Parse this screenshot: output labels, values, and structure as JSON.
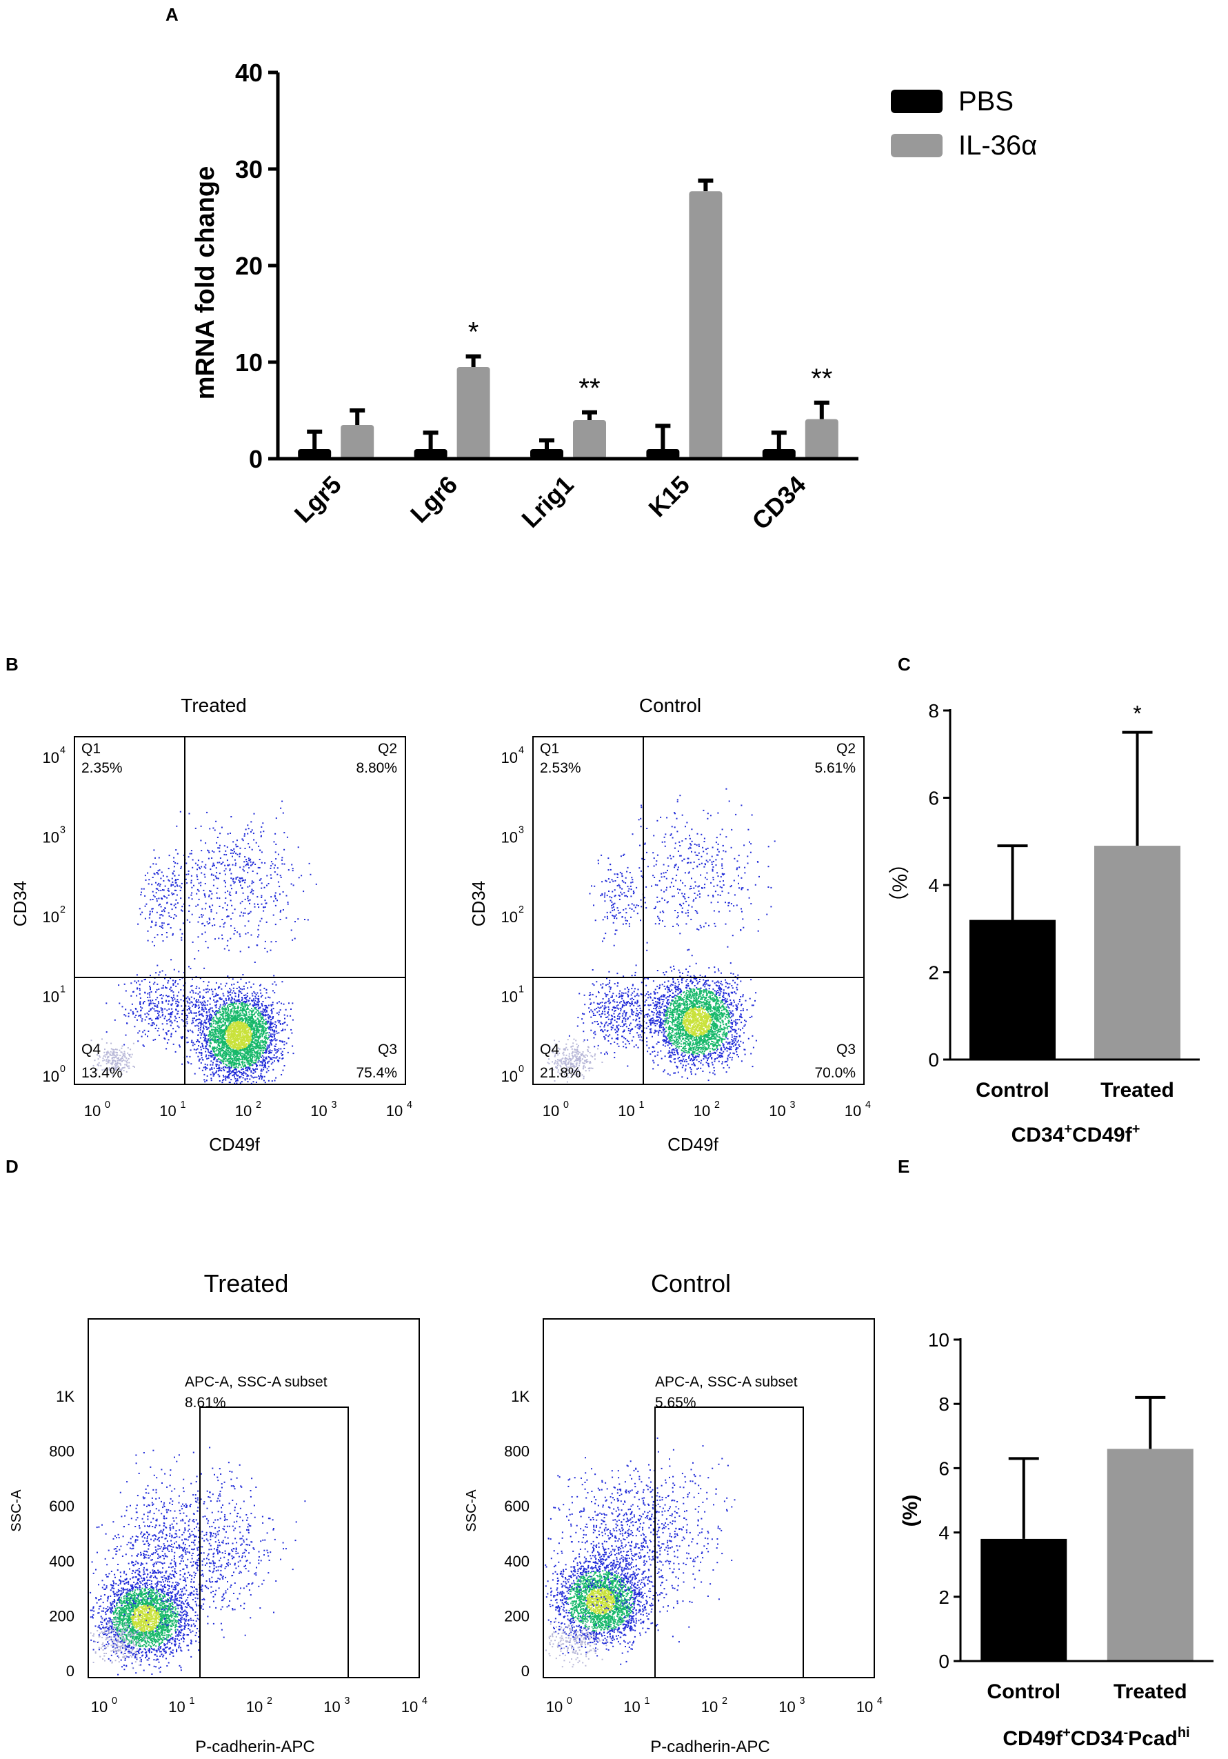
{
  "panel_labels": {
    "a": "A",
    "b": "B",
    "c": "C",
    "d": "D",
    "e": "E"
  },
  "colors": {
    "pbs": "#000000",
    "il36": "#999999",
    "control_bar": "#000000",
    "treated_bar": "#999999",
    "dot_low": "#1f2ad8",
    "dot_mid": "#17b86a",
    "dot_high": "#c9e23a",
    "dot_sparse": "#b8b8d8"
  },
  "chart_data": [
    {
      "id": "A",
      "type": "bar",
      "title": "",
      "ylabel": "mRNA fold change",
      "xlabel": "",
      "ylim": [
        0,
        40
      ],
      "yticks": [
        "0",
        "10",
        "20",
        "30",
        "40"
      ],
      "categories": [
        "Lgr5",
        "Lgr6",
        "Lrig1",
        "K15",
        "CD34"
      ],
      "series": [
        {
          "name": "PBS",
          "values": [
            1.0,
            1.0,
            1.0,
            1.0,
            1.0
          ],
          "errors": [
            1.8,
            1.7,
            0.9,
            2.4,
            1.7
          ]
        },
        {
          "name": "IL-36α",
          "values": [
            3.5,
            9.5,
            4.0,
            27.7,
            4.1
          ],
          "errors": [
            1.5,
            1.1,
            0.8,
            1.1,
            1.7
          ]
        }
      ],
      "annotations": [
        "",
        "*",
        "**",
        "",
        "**"
      ],
      "legend": [
        "PBS",
        "IL-36α"
      ]
    },
    {
      "id": "B",
      "type": "scatter",
      "plots": [
        {
          "title": "Treated",
          "xlabel": "CD49f",
          "ylabel": "CD34",
          "quadrants": {
            "q1": {
              "label": "Q1",
              "value": "2.35%"
            },
            "q2": {
              "label": "Q2",
              "value": "8.80%"
            },
            "q3": {
              "label": "Q3",
              "value": "75.4%"
            },
            "q4": {
              "label": "Q4",
              "value": "13.4%"
            }
          }
        },
        {
          "title": "Control",
          "xlabel": "CD49f",
          "ylabel": "CD34",
          "quadrants": {
            "q1": {
              "label": "Q1",
              "value": "2.53%"
            },
            "q2": {
              "label": "Q2",
              "value": "5.61%"
            },
            "q3": {
              "label": "Q3",
              "value": "70.0%"
            },
            "q4": {
              "label": "Q4",
              "value": "21.8%"
            }
          }
        }
      ],
      "log_ticks": [
        "0",
        "1",
        "2",
        "3",
        "4"
      ]
    },
    {
      "id": "C",
      "type": "bar",
      "ylabel": "（%）",
      "xlabel": "CD34⁺CD49f⁺",
      "ylim": [
        0,
        8
      ],
      "yticks": [
        "0",
        "2",
        "4",
        "6",
        "8"
      ],
      "categories": [
        "Control",
        "Treated"
      ],
      "values": [
        3.2,
        4.9
      ],
      "errors": [
        1.7,
        2.6
      ],
      "annotations": [
        "",
        "*"
      ]
    },
    {
      "id": "D",
      "type": "scatter",
      "plots": [
        {
          "title": "Treated",
          "gate_label": "APC-A, SSC-A subset",
          "gate_value": "8.61%",
          "xlabel": "P-cadherin-APC",
          "ylabel": "SSC-A"
        },
        {
          "title": "Control",
          "gate_label": "APC-A, SSC-A subset",
          "gate_value": "5.65%",
          "xlabel": "P-cadherin-APC",
          "ylabel": "SSC-A"
        }
      ],
      "yticks": [
        "0",
        "200",
        "400",
        "600",
        "800",
        "1K"
      ],
      "log_ticks": [
        "0",
        "1",
        "2",
        "3",
        "4"
      ]
    },
    {
      "id": "E",
      "type": "bar",
      "ylabel": "(%)",
      "xlabel": "CD49f⁺CD34⁻Pcad^hi",
      "ylim": [
        0,
        10
      ],
      "yticks": [
        "0",
        "2",
        "4",
        "6",
        "8",
        "10"
      ],
      "categories": [
        "Control",
        "Treated"
      ],
      "values": [
        3.8,
        6.6
      ],
      "errors": [
        2.5,
        1.6
      ]
    }
  ],
  "text": {
    "c_xlabel_main": "CD34",
    "c_xlabel_sup1": "+",
    "c_xlabel_mid": "CD49f",
    "c_xlabel_sup2": "+",
    "e_xlabel_a": "CD49f",
    "e_xlabel_sup1": "+",
    "e_xlabel_b": "CD34",
    "e_xlabel_sup2": "-",
    "e_xlabel_c": "Pcad",
    "e_xlabel_sup3": "hi",
    "flow_base": "10"
  }
}
